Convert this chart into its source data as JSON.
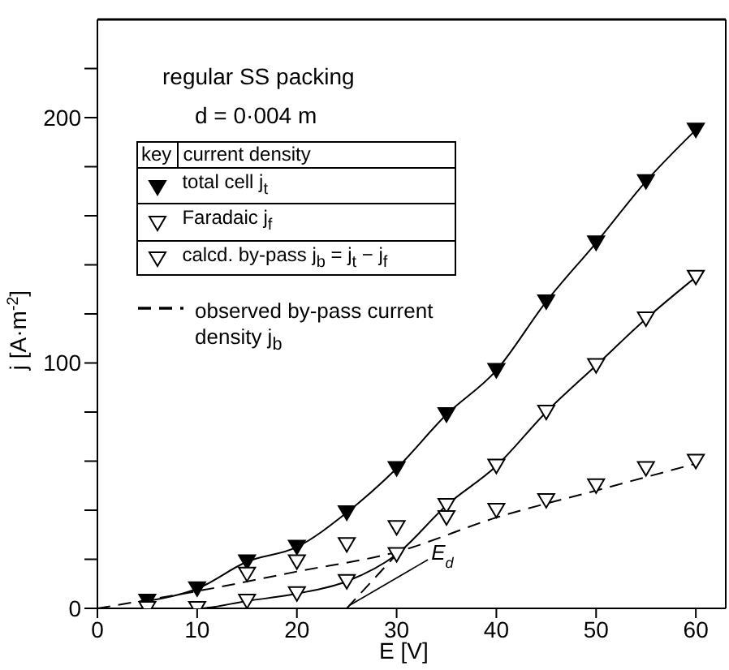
{
  "chart_data": {
    "type": "line",
    "title": "regular SS packing",
    "subtitle": "d = 0·004 m",
    "xlabel": "E  [V]",
    "ylabel": "j  [A·m$^{-2}$]",
    "legend_title": "current density",
    "legend": "top left",
    "annotations": [
      "key",
      {
        "text": "E$_{d}$",
        "x": 25,
        "y": 0
      }
    ],
    "xlim": [
      0,
      63
    ],
    "xticks": [
      0,
      10,
      20,
      30,
      40,
      50,
      60
    ],
    "ylim": [
      0,
      240
    ],
    "yticks": [
      0,
      {
        "value": 20,
        "label": null
      },
      {
        "value": 40,
        "label": null
      },
      {
        "value": 60,
        "label": null
      },
      {
        "value": 80,
        "label": null
      },
      100,
      {
        "value": 120,
        "label": null
      },
      {
        "value": 140,
        "label": null
      },
      {
        "value": 160,
        "label": null
      },
      {
        "value": 180,
        "label": null
      },
      200,
      {
        "value": 220,
        "label": null
      }
    ],
    "series": [
      {
        "name": "total cell j$_{t}$",
        "type": "line",
        "color": "#000000",
        "marker": "triangle",
        "line_style": "solid",
        "x": [
          5,
          10,
          15,
          20,
          25,
          30,
          35,
          40,
          45,
          50,
          55,
          60
        ],
        "values": [
          3,
          8,
          19,
          25,
          39,
          57,
          79,
          97,
          125,
          149,
          174,
          195
        ]
      },
      {
        "name": "Faradaic j$_{f}$",
        "type": "line",
        "color": "#ffffff",
        "marker": "triangle",
        "line_style": "solid",
        "x": [
          5,
          10,
          15,
          20,
          25,
          30,
          35,
          40,
          45,
          50,
          55,
          60
        ],
        "values": [
          0,
          0,
          3,
          6,
          11,
          22,
          42,
          58,
          80,
          99,
          118,
          135
        ]
      },
      {
        "name": "calcd. by-pass j$_{b}$ = j$_{t}$ − j$_{f}$",
        "type": "scatter",
        "color": "#ffffff",
        "marker": "triangle",
        "x": [
          15,
          20,
          25,
          30,
          35,
          40,
          45,
          50,
          55,
          60
        ],
        "values": [
          14,
          19,
          26,
          33,
          37,
          40,
          44,
          50,
          57,
          60
        ]
      },
      {
        "name": "observed by-pass current density j$_{b}$",
        "type": "line",
        "color": "#000000",
        "marker": "none",
        "line_style": "dashed",
        "x": [
          0,
          10,
          20,
          30,
          40,
          50,
          60
        ],
        "values": [
          0,
          7,
          15,
          23,
          37,
          48,
          59
        ]
      },
      {
        "type": "line",
        "color": "#000000",
        "marker": "none",
        "line_style": "dashed",
        "x": [
          25,
          30
        ],
        "values": [
          0,
          22
        ]
      }
    ]
  }
}
